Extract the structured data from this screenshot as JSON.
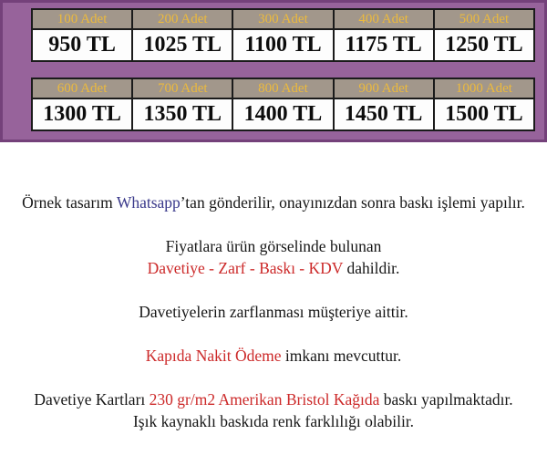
{
  "colors": {
    "banner": "#97639b",
    "banner_edge": "#74417a",
    "header_bg": "#a2978b",
    "header_text": "#ecba3d",
    "table_border": "#1b1b1b",
    "price_text": "#0d0d0d",
    "body_text": "#161616",
    "red": "#cc2929",
    "whatsapp_blue": "#39388a"
  },
  "price_tables": [
    {
      "headers": [
        "100 Adet",
        "200 Adet",
        "300 Adet",
        "400 Adet",
        "500 Adet"
      ],
      "prices": [
        "950 TL",
        "1025 TL",
        "1100 TL",
        "1175 TL",
        "1250 TL"
      ]
    },
    {
      "headers": [
        "600 Adet",
        "700 Adet",
        "800 Adet",
        "900 Adet",
        "1000 Adet"
      ],
      "prices": [
        "1300 TL",
        "1350 TL",
        "1400 TL",
        "1450 TL",
        "1500 TL"
      ]
    }
  ],
  "notes": {
    "sample_pre": "Örnek tasarım ",
    "sample_brand": "Whatsapp",
    "sample_post": "’tan gönderilir, onayınızdan sonra baskı işlemi yapılır.",
    "included_line1": "Fiyatlara ürün görselinde bulunan",
    "included_red": "Davetiye - Zarf - Baskı - KDV",
    "included_post": " dahildir.",
    "envelope": "Davetiyelerin zarflanması müşteriye aittir.",
    "cod_red": "Kapıda Nakit Ödeme",
    "cod_post": " imkanı mevcuttur.",
    "paper_pre": "Davetiye Kartları ",
    "paper_red": "230 gr/m2 Amerikan Bristol Kağıda",
    "paper_post": " baskı yapılmaktadır.",
    "light": "Işık kaynaklı baskıda renk farklılığı olabilir."
  }
}
